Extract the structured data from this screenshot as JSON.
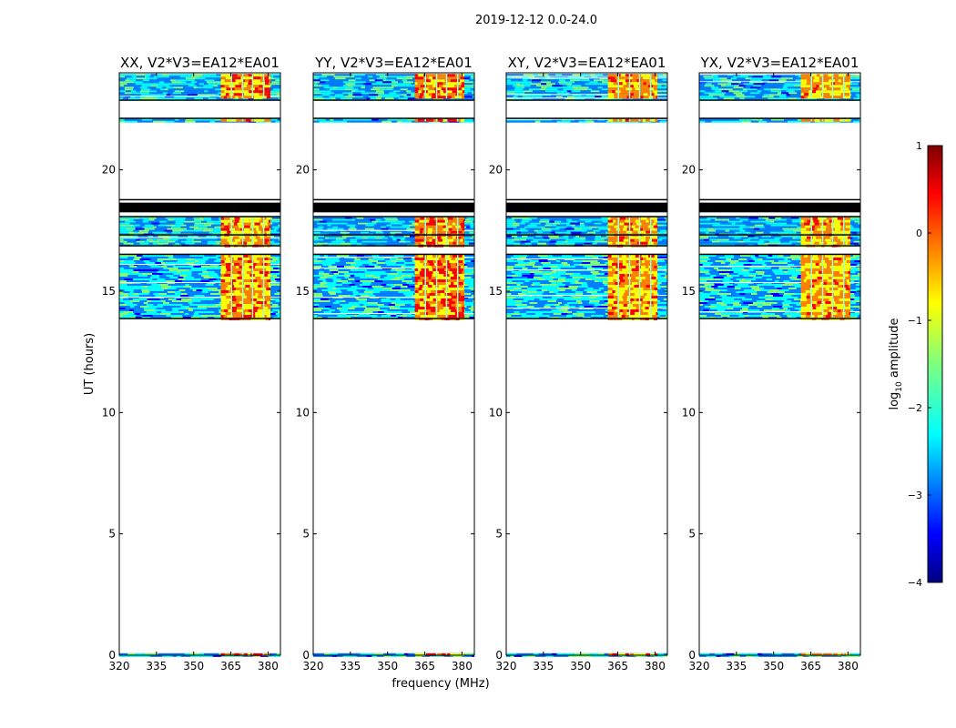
{
  "figure_title": "2019-12-12 0.0-24.0",
  "colors": {
    "flagged": "#000000",
    "colormap": [
      "#00007f",
      "#0000ff",
      "#007fff",
      "#00ffff",
      "#7fff7f",
      "#ffff00",
      "#ff7f00",
      "#ff0000",
      "#7f0000"
    ]
  },
  "chart_data": {
    "type": "heatmap",
    "title": "2019-12-12 0.0-24.0",
    "xlabel": "frequency (MHz)",
    "ylabel": "UT (hours)",
    "xlim": [
      320,
      385
    ],
    "ylim": [
      0,
      24
    ],
    "xticks": [
      320,
      335,
      350,
      365,
      380
    ],
    "yticks": [
      0,
      5,
      10,
      15,
      20
    ],
    "panels": [
      {
        "title": "XX, V2*V3=EA12*EA01",
        "rfi_intensity": 0.85
      },
      {
        "title": "YY, V2*V3=EA12*EA01",
        "rfi_intensity": 1.0
      },
      {
        "title": "XY, V2*V3=EA12*EA01",
        "rfi_intensity": 0.8
      },
      {
        "title": "YX, V2*V3=EA12*EA01",
        "rfi_intensity": 0.75
      }
    ],
    "data_time_ranges_hours": [
      [
        0.0,
        0.08
      ],
      [
        13.9,
        16.5
      ],
      [
        16.9,
        18.05
      ],
      [
        22.0,
        22.1
      ],
      [
        22.95,
        23.95
      ]
    ],
    "flagged_time_ranges_hours": [
      [
        18.25,
        18.65
      ],
      [
        17.3,
        17.35
      ],
      [
        16.85,
        16.9
      ]
    ],
    "rfi_band_mhz": [
      361,
      381
    ],
    "rfi_gaps_mhz": [
      365,
      369.5,
      373.5,
      378
    ],
    "colorbar": {
      "label": "log10 amplitude",
      "label_prefix": "log",
      "label_sub": "10",
      "label_suffix": " amplitude",
      "range": [
        -4,
        1
      ],
      "ticks": [
        1,
        0,
        -1,
        -2,
        -3,
        -4
      ],
      "tick_labels": [
        "1",
        "0",
        "−1",
        "−2",
        "−3",
        "−4"
      ]
    }
  }
}
